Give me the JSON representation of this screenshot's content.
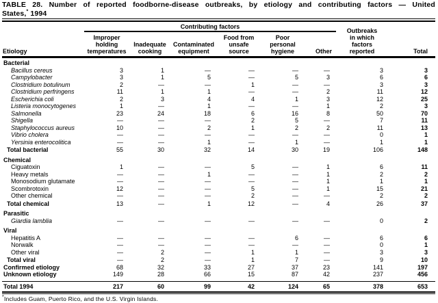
{
  "title": {
    "line1": "TABLE 28. Number of reported foodborne-disease outbreaks, by etiology and contributing factors — United",
    "line2_pre": "States,",
    "line2_sup": "*",
    "line2_post": " 1994"
  },
  "header": {
    "etiology": "Etiology",
    "contributing_factors": "Contributing factors",
    "factor_columns": [
      "Improper\nholding\ntemperatures",
      "Inadequate\ncooking",
      "Contaminated\nequipment",
      "Food from\nunsafe\nsource",
      "Poor\npersonal\nhygiene",
      "Other"
    ],
    "outbreaks_reported": "Outbreaks\nin which\nfactors\nreported",
    "total": "Total"
  },
  "table": {
    "rows": [
      {
        "type": "section",
        "label": "Bacterial"
      },
      {
        "type": "species",
        "label": "Bacillus cereus",
        "values": [
          "3",
          "1",
          "—",
          "—",
          "—",
          "—",
          "3",
          "3"
        ]
      },
      {
        "type": "species",
        "label": "Campylobacter",
        "values": [
          "3",
          "1",
          "5",
          "—",
          "5",
          "3",
          "6",
          "6"
        ]
      },
      {
        "type": "species",
        "label": "Clostridium botulinum",
        "values": [
          "2",
          "—",
          "—",
          "1",
          "—",
          "—",
          "3",
          "3"
        ]
      },
      {
        "type": "species",
        "label": "Clostridium perfringens",
        "values": [
          "11",
          "1",
          "1",
          "—",
          "—",
          "2",
          "11",
          "12"
        ]
      },
      {
        "type": "species",
        "label": "Escherichia coli",
        "values": [
          "2",
          "3",
          "4",
          "4",
          "1",
          "3",
          "12",
          "25"
        ]
      },
      {
        "type": "species",
        "label": "Listeria monocytogenes",
        "values": [
          "1",
          "—",
          "1",
          "—",
          "—",
          "1",
          "2",
          "3"
        ]
      },
      {
        "type": "species",
        "label": "Salmonella",
        "values": [
          "23",
          "24",
          "18",
          "6",
          "16",
          "8",
          "50",
          "70"
        ]
      },
      {
        "type": "species",
        "label": "Shigella",
        "values": [
          "—",
          "—",
          "—",
          "2",
          "5",
          "—",
          "7",
          "11"
        ]
      },
      {
        "type": "species",
        "label": "Staphylococcus aureus",
        "values": [
          "10",
          "—",
          "2",
          "1",
          "2",
          "2",
          "11",
          "13"
        ]
      },
      {
        "type": "species",
        "label": "Vibrio cholera",
        "values": [
          "—",
          "—",
          "—",
          "—",
          "—",
          "—",
          "0",
          "1"
        ]
      },
      {
        "type": "species",
        "label": "Yersinia enterocolitica",
        "values": [
          "—",
          "—",
          "1",
          "—",
          "1",
          "—",
          "1",
          "1"
        ]
      },
      {
        "type": "total",
        "label": "Total bacterial",
        "values": [
          "55",
          "30",
          "32",
          "14",
          "30",
          "19",
          "106",
          "148"
        ]
      },
      {
        "type": "section",
        "label": "Chemical"
      },
      {
        "type": "item",
        "label": "Ciguatoxin",
        "values": [
          "1",
          "—",
          "—",
          "5",
          "—",
          "1",
          "6",
          "11"
        ]
      },
      {
        "type": "item",
        "label": "Heavy metals",
        "values": [
          "—",
          "—",
          "1",
          "—",
          "—",
          "1",
          "2",
          "2"
        ]
      },
      {
        "type": "item",
        "label": "Monosodium glutamate",
        "values": [
          "—",
          "—",
          "—",
          "—",
          "—",
          "1",
          "1",
          "1"
        ]
      },
      {
        "type": "item",
        "label": "Scombrotoxin",
        "values": [
          "12",
          "—",
          "—",
          "5",
          "—",
          "1",
          "15",
          "21"
        ]
      },
      {
        "type": "item",
        "label": "Other chemical",
        "values": [
          "—",
          "—",
          "—",
          "2",
          "—",
          "—",
          "2",
          "2"
        ]
      },
      {
        "type": "total",
        "label": "Total chemical",
        "values": [
          "13",
          "—",
          "1",
          "12",
          "—",
          "4",
          "26",
          "37"
        ]
      },
      {
        "type": "section",
        "label": "Parasitic"
      },
      {
        "type": "species",
        "label": "Giardia lamblia",
        "values": [
          "—",
          "—",
          "—",
          "—",
          "—",
          "—",
          "0",
          "2"
        ]
      },
      {
        "type": "section",
        "label": "Viral"
      },
      {
        "type": "item",
        "label": "Hepatitis A",
        "values": [
          "—",
          "—",
          "—",
          "—",
          "6",
          "—",
          "6",
          "6"
        ]
      },
      {
        "type": "item",
        "label": "Norwalk",
        "values": [
          "—",
          "—",
          "—",
          "—",
          "—",
          "—",
          "0",
          "1"
        ]
      },
      {
        "type": "item",
        "label": "Other viral",
        "values": [
          "—",
          "2",
          "—",
          "1",
          "1",
          "—",
          "3",
          "3"
        ]
      },
      {
        "type": "total",
        "label": "Total viral",
        "values": [
          "—",
          "2",
          "—",
          "1",
          "7",
          "—",
          "9",
          "10"
        ]
      },
      {
        "type": "flush",
        "label": "Confirmed etiology",
        "values": [
          "68",
          "32",
          "33",
          "27",
          "37",
          "23",
          "141",
          "197"
        ]
      },
      {
        "type": "flush",
        "label": "Unknown etiology",
        "values": [
          "149",
          "28",
          "66",
          "15",
          "87",
          "42",
          "237",
          "456"
        ]
      },
      {
        "type": "grand",
        "label": "Total 1994",
        "values": [
          "217",
          "60",
          "99",
          "42",
          "124",
          "65",
          "378",
          "653"
        ]
      }
    ]
  },
  "footnote": {
    "sup": "*",
    "text": "Includes Guam, Puerto Rico, and the U.S. Virgin Islands."
  }
}
